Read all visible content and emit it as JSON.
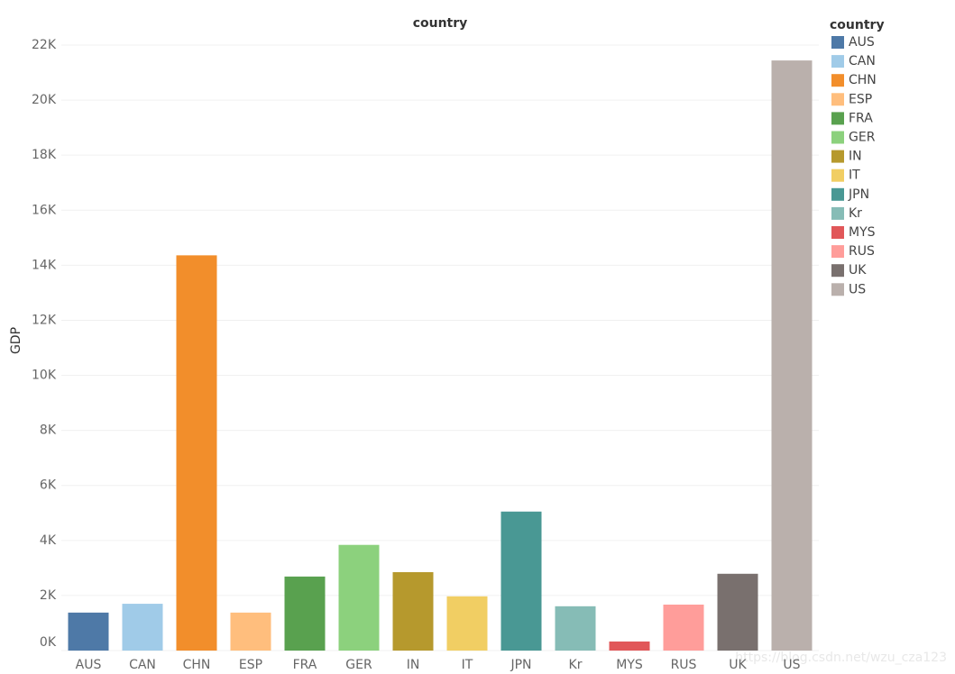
{
  "chart_data": {
    "type": "bar",
    "title": "country",
    "y_label": "GDP",
    "legend_title": "country",
    "categories": [
      "AUS",
      "CAN",
      "CHN",
      "ESP",
      "FRA",
      "GER",
      "IN",
      "IT",
      "JPN",
      "Kr",
      "MYS",
      "RUS",
      "UK",
      "US"
    ],
    "values": [
      1380,
      1700,
      14360,
      1380,
      2690,
      3840,
      2850,
      1970,
      5050,
      1610,
      330,
      1670,
      2790,
      21440
    ],
    "colors": [
      "#4e79a7",
      "#a0cbe8",
      "#f28e2b",
      "#ffbe7d",
      "#59a14f",
      "#8cd17d",
      "#b6992d",
      "#f1ce63",
      "#499894",
      "#86bcb6",
      "#e15759",
      "#ff9d9a",
      "#79706e",
      "#bab0ac"
    ],
    "ylim": [
      0,
      22000
    ],
    "yticks": [
      {
        "value": 0,
        "label": "0K"
      },
      {
        "value": 2000,
        "label": "2K"
      },
      {
        "value": 4000,
        "label": "4K"
      },
      {
        "value": 6000,
        "label": "6K"
      },
      {
        "value": 8000,
        "label": "8K"
      },
      {
        "value": 10000,
        "label": "10K"
      },
      {
        "value": 12000,
        "label": "12K"
      },
      {
        "value": 14000,
        "label": "14K"
      },
      {
        "value": 16000,
        "label": "16K"
      },
      {
        "value": 18000,
        "label": "18K"
      },
      {
        "value": 20000,
        "label": "20K"
      },
      {
        "value": 22000,
        "label": "22K"
      }
    ],
    "grid": true,
    "legend": "right",
    "watermark": "https://blog.csdn.net/wzu_cza123"
  }
}
